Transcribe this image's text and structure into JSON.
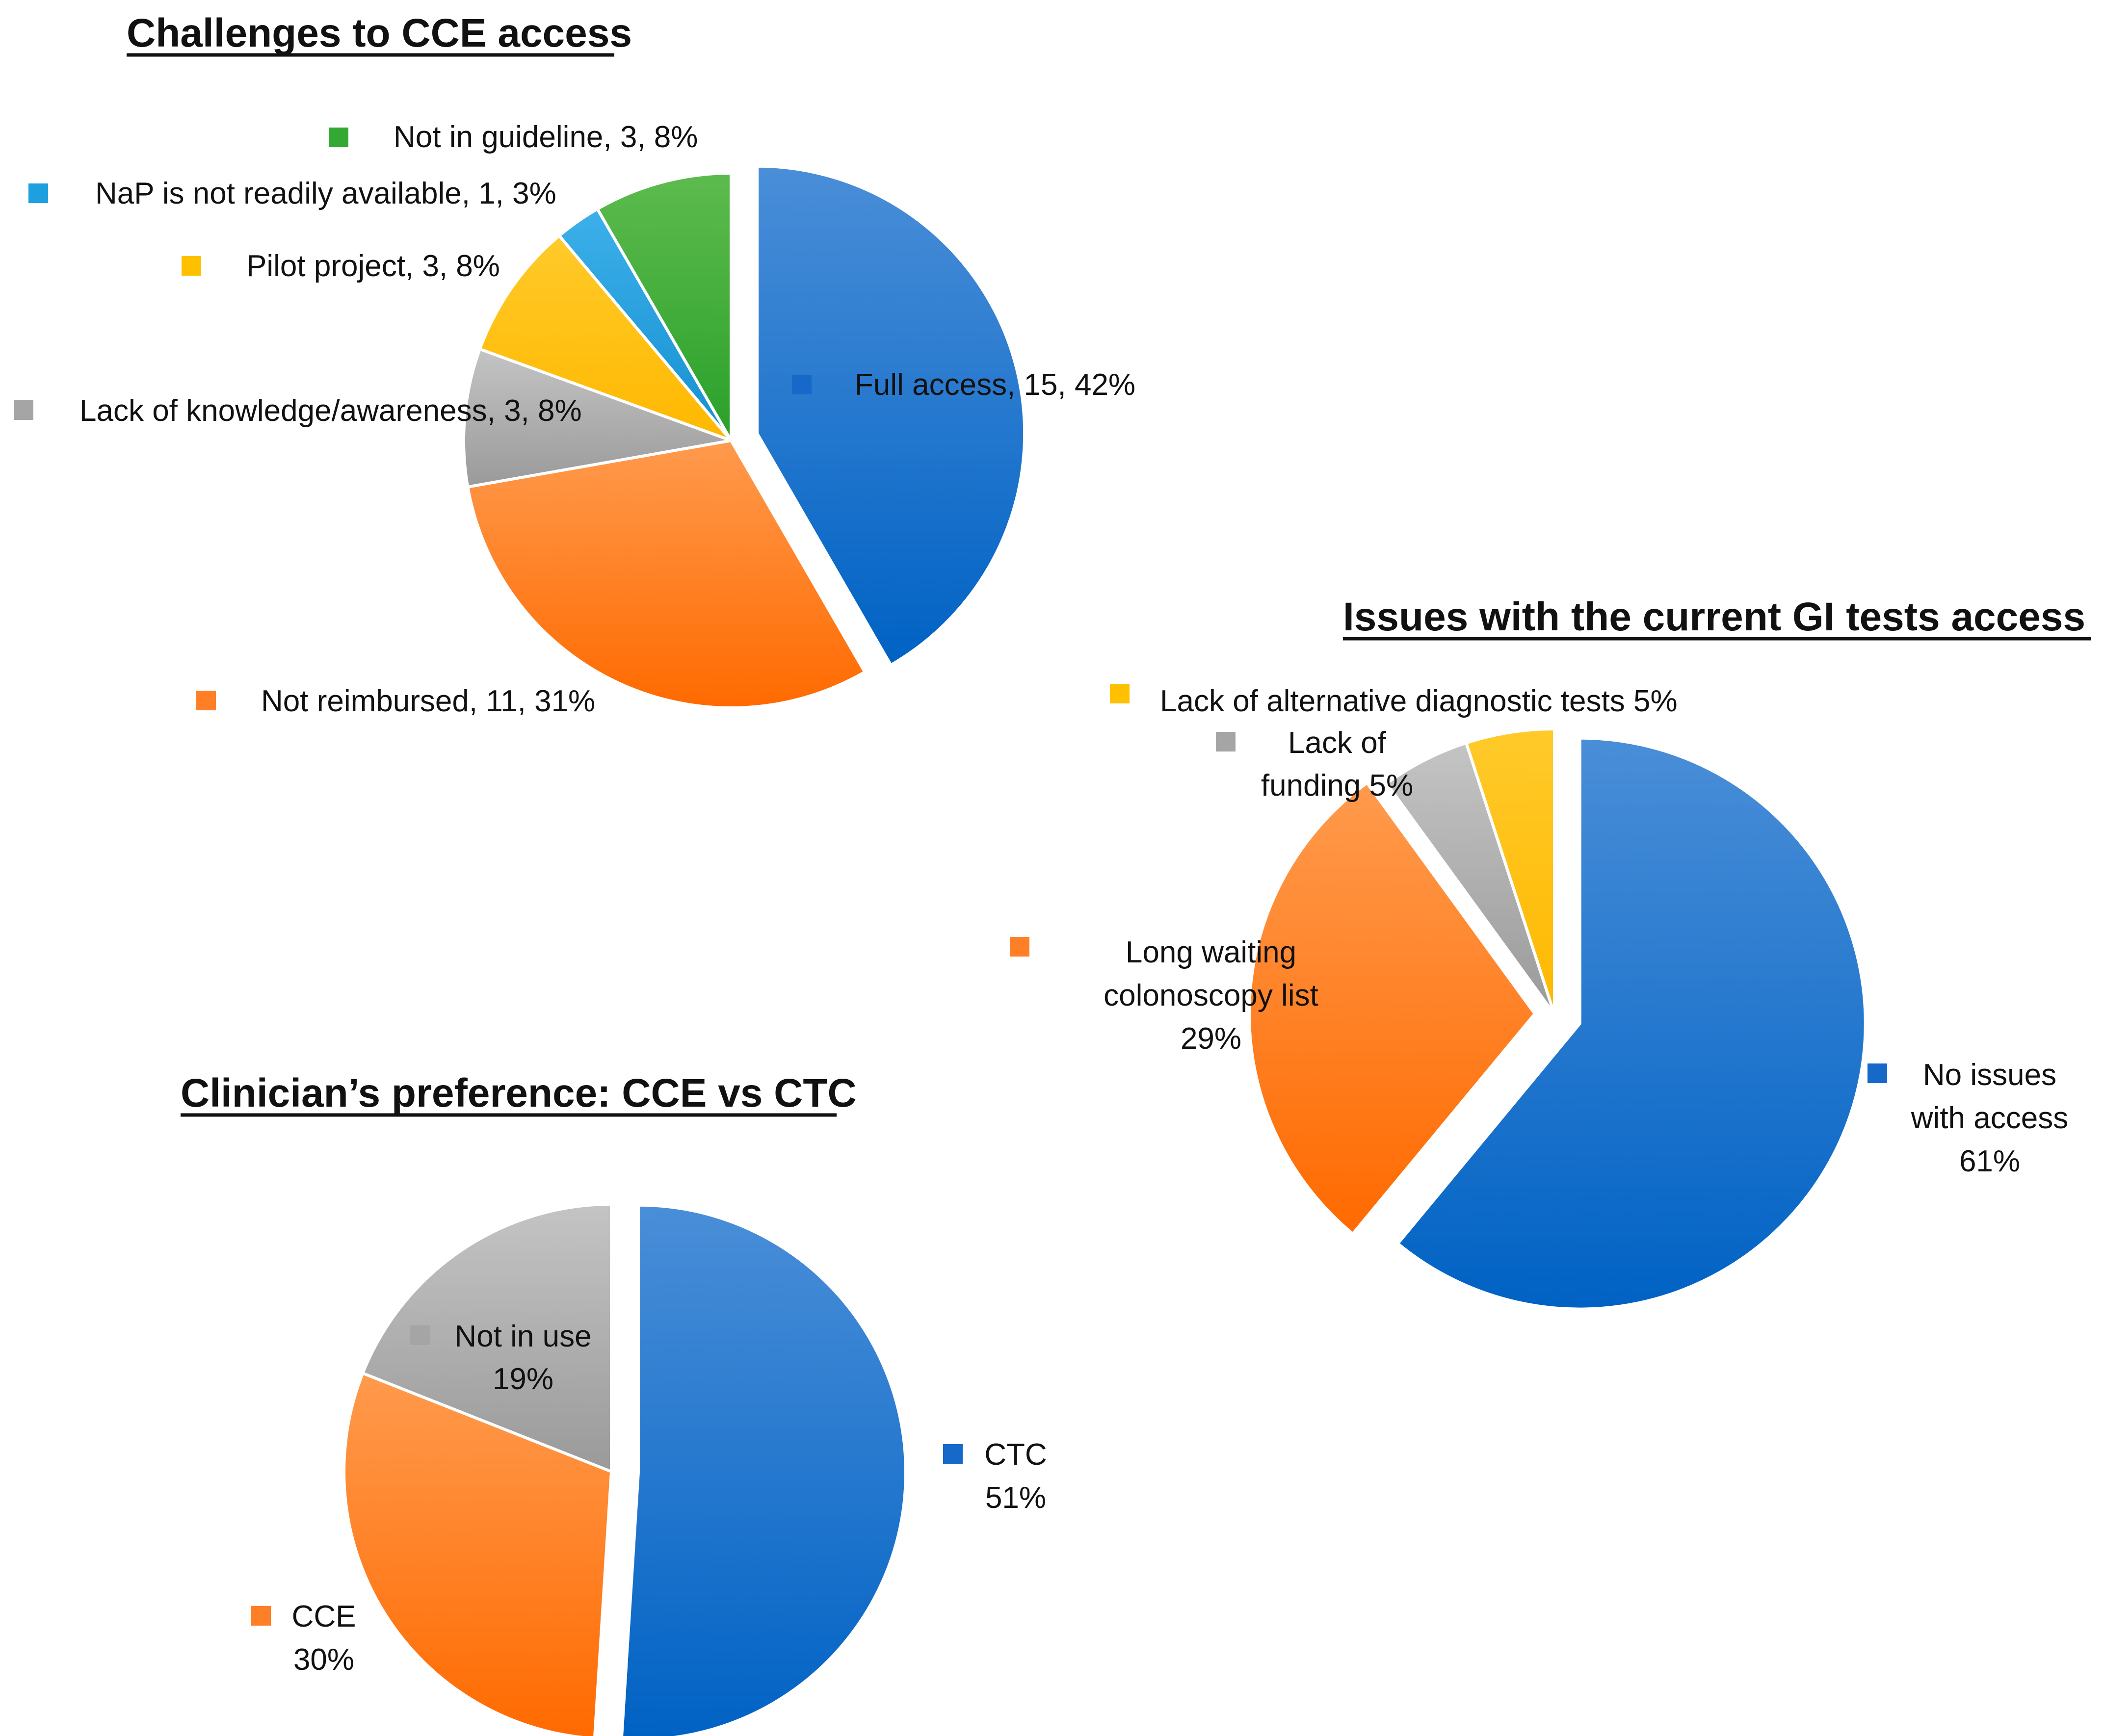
{
  "colors": {
    "blue": "#1669c9",
    "blue_light": "#4a8ed8",
    "orange": "#ff7f27",
    "orange_light": "#ff9a4d",
    "gray": "#a5a5a5",
    "gray_light": "#c4c4c4",
    "yellow": "#ffc000",
    "light_blue": "#1ea0e0",
    "green": "#33a832",
    "green_light": "#5dbb4e"
  },
  "chart_data": [
    {
      "type": "pie",
      "title": "Challenges to CCE access",
      "slices": [
        {
          "name": "Full access",
          "value": 15,
          "percent": 42,
          "color": "blue",
          "label": "Full access, 15, 42%"
        },
        {
          "name": "Not reimbursed",
          "value": 11,
          "percent": 31,
          "color": "orange",
          "label": "Not reimbursed, 11, 31%"
        },
        {
          "name": "Lack of knowledge/awareness",
          "value": 3,
          "percent": 8,
          "color": "gray",
          "label": "Lack of knowledge/awareness, 3, 8%"
        },
        {
          "name": "Pilot project",
          "value": 3,
          "percent": 8,
          "color": "yellow",
          "label": "Pilot project, 3, 8%"
        },
        {
          "name": "NaP is not readily available",
          "value": 1,
          "percent": 3,
          "color": "light_blue",
          "label": "NaP is not readily available, 1, 3%"
        },
        {
          "name": "Not in guideline",
          "value": 3,
          "percent": 8,
          "color": "green",
          "label": "Not in guideline, 3, 8%"
        }
      ]
    },
    {
      "type": "pie",
      "title": "Issues with the current GI tests access",
      "slices": [
        {
          "name": "No issues with access",
          "value": 61,
          "percent": 61,
          "color": "blue",
          "label_lines": [
            "No issues",
            "with access",
            "61%"
          ]
        },
        {
          "name": "Long waiting colonoscopy list",
          "value": 29,
          "percent": 29,
          "color": "orange",
          "label_lines": [
            "Long waiting",
            "colonoscopy list",
            "29%"
          ]
        },
        {
          "name": "Lack of funding",
          "value": 5,
          "percent": 5,
          "color": "gray",
          "label_lines": [
            "Lack of",
            "funding 5%"
          ]
        },
        {
          "name": "Lack of alternative diagnostic tests",
          "value": 5,
          "percent": 5,
          "color": "yellow",
          "label_lines": [
            "Lack of alternative diagnostic tests  5%"
          ]
        }
      ]
    },
    {
      "type": "pie",
      "title": "Clinician’s preference: CCE vs CTC",
      "slices": [
        {
          "name": "CTC",
          "value": 51,
          "percent": 51,
          "color": "blue",
          "label_lines": [
            "CTC",
            "51%"
          ]
        },
        {
          "name": "CCE",
          "value": 30,
          "percent": 30,
          "color": "orange",
          "label_lines": [
            "CCE",
            "30%"
          ]
        },
        {
          "name": "Not in use",
          "value": 19,
          "percent": 19,
          "color": "gray",
          "label_lines": [
            "Not in use",
            "19%"
          ]
        }
      ]
    }
  ]
}
